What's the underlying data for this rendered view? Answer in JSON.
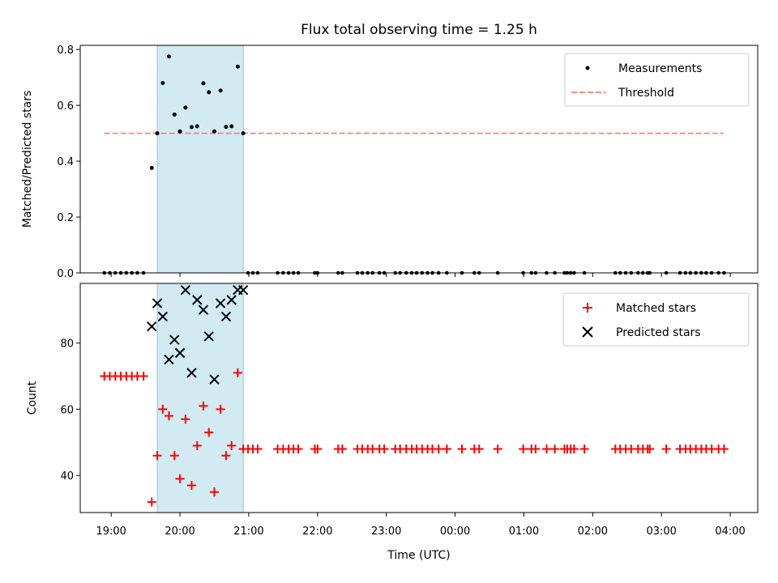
{
  "title": "Flux total observing time = 1.25 h",
  "chart_data": [
    {
      "type": "scatter",
      "name": "ratio-panel",
      "ylabel": "Matched/Predicted stars",
      "ylim": [
        0,
        0.815
      ],
      "xlim_hours": [
        18.55,
        28.4
      ],
      "yticks": [
        0.0,
        0.2,
        0.4,
        0.6,
        0.8
      ],
      "ytick_labels": [
        "0.0",
        "0.2",
        "0.4",
        "0.6",
        "0.8"
      ],
      "shaded_span_hours": [
        19.67,
        20.92
      ],
      "legend": {
        "position": "top-right",
        "entries": [
          "Measurements",
          "Threshold"
        ]
      },
      "threshold": {
        "value": 0.5,
        "x_range_hours": [
          18.9,
          27.9
        ],
        "color": "#ff7f7f",
        "style": "dashed"
      },
      "measurements_color": "#000000",
      "measurements": [
        [
          19.59,
          0.376
        ],
        [
          19.67,
          0.5
        ],
        [
          19.75,
          0.68
        ],
        [
          19.84,
          0.775
        ],
        [
          19.92,
          0.567
        ],
        [
          20.0,
          0.507
        ],
        [
          20.08,
          0.592
        ],
        [
          20.17,
          0.522
        ],
        [
          20.25,
          0.525
        ],
        [
          20.34,
          0.679
        ],
        [
          20.42,
          0.647
        ],
        [
          20.5,
          0.507
        ],
        [
          20.59,
          0.653
        ],
        [
          20.67,
          0.523
        ],
        [
          20.75,
          0.525
        ],
        [
          20.84,
          0.739
        ],
        [
          20.92,
          0.5
        ]
      ],
      "zero_points_hours": [
        18.9,
        18.98,
        19.06,
        19.14,
        19.22,
        19.3,
        19.38,
        19.47,
        20.99,
        21.06,
        21.13,
        21.42,
        21.5,
        21.58,
        21.65,
        21.72,
        21.96,
        22.0,
        22.3,
        22.36,
        22.58,
        22.65,
        22.73,
        22.8,
        22.9,
        22.97,
        23.13,
        23.2,
        23.29,
        23.37,
        23.44,
        23.52,
        23.6,
        23.67,
        23.76,
        23.88,
        24.1,
        24.28,
        24.35,
        24.62,
        24.99,
        25.11,
        25.17,
        25.33,
        25.45,
        25.59,
        25.63,
        25.68,
        25.73,
        25.88,
        26.33,
        26.4,
        26.48,
        26.56,
        26.66,
        26.73,
        26.8,
        26.83,
        27.07,
        27.27,
        27.35,
        27.42,
        27.5,
        27.58,
        27.65,
        27.73,
        27.83,
        27.91
      ]
    },
    {
      "type": "scatter",
      "name": "count-panel",
      "ylabel": "Count",
      "xlabel": "Time (UTC)",
      "ylim": [
        28.8,
        98
      ],
      "xlim_hours": [
        18.55,
        28.4
      ],
      "yticks": [
        40,
        60,
        80
      ],
      "ytick_labels": [
        "40",
        "60",
        "80"
      ],
      "xticks_hours": [
        19,
        20,
        21,
        22,
        23,
        24,
        25,
        26,
        27,
        28
      ],
      "xtick_labels": [
        "19:00",
        "20:00",
        "21:00",
        "22:00",
        "23:00",
        "00:00",
        "01:00",
        "02:00",
        "03:00",
        "04:00"
      ],
      "shaded_span_hours": [
        19.67,
        20.92
      ],
      "legend": {
        "position": "top-right",
        "entries": [
          "Matched stars",
          "Predicted stars"
        ]
      },
      "matched_color": "#ff0000",
      "predicted_color": "#000000",
      "matched_constant_early": {
        "value": 70,
        "hours": [
          18.9,
          18.98,
          19.06,
          19.14,
          19.22,
          19.3,
          19.38,
          19.47
        ]
      },
      "matched_constant_late": {
        "value": 48,
        "hours": [
          20.99,
          21.06,
          21.13,
          21.42,
          21.5,
          21.58,
          21.65,
          21.72,
          21.96,
          22.0,
          22.3,
          22.36,
          22.58,
          22.65,
          22.73,
          22.8,
          22.9,
          22.97,
          23.13,
          23.2,
          23.29,
          23.37,
          23.44,
          23.52,
          23.6,
          23.67,
          23.76,
          23.88,
          24.1,
          24.28,
          24.35,
          24.62,
          24.99,
          25.11,
          25.17,
          25.33,
          25.45,
          25.59,
          25.63,
          25.68,
          25.73,
          25.88,
          26.33,
          26.4,
          26.48,
          26.56,
          26.66,
          26.73,
          26.8,
          26.83,
          27.07,
          27.27,
          27.35,
          27.42,
          27.5,
          27.58,
          27.65,
          27.73,
          27.83,
          27.91
        ]
      },
      "matched_window": [
        [
          19.59,
          32
        ],
        [
          19.67,
          46
        ],
        [
          19.75,
          60
        ],
        [
          19.84,
          58
        ],
        [
          19.92,
          46
        ],
        [
          20.0,
          39
        ],
        [
          20.08,
          57
        ],
        [
          20.17,
          37
        ],
        [
          20.25,
          49
        ],
        [
          20.34,
          61
        ],
        [
          20.42,
          53
        ],
        [
          20.5,
          35
        ],
        [
          20.59,
          60
        ],
        [
          20.67,
          46
        ],
        [
          20.75,
          49
        ],
        [
          20.84,
          71
        ],
        [
          20.92,
          48
        ]
      ],
      "predicted_window": [
        [
          19.59,
          85
        ],
        [
          19.67,
          92
        ],
        [
          19.75,
          88
        ],
        [
          19.84,
          75
        ],
        [
          19.92,
          81
        ],
        [
          20.0,
          77
        ],
        [
          20.08,
          96
        ],
        [
          20.17,
          71
        ],
        [
          20.25,
          93
        ],
        [
          20.34,
          90
        ],
        [
          20.42,
          82
        ],
        [
          20.5,
          69
        ],
        [
          20.59,
          92
        ],
        [
          20.67,
          88
        ],
        [
          20.75,
          93
        ],
        [
          20.84,
          96
        ],
        [
          20.92,
          96
        ]
      ]
    }
  ]
}
